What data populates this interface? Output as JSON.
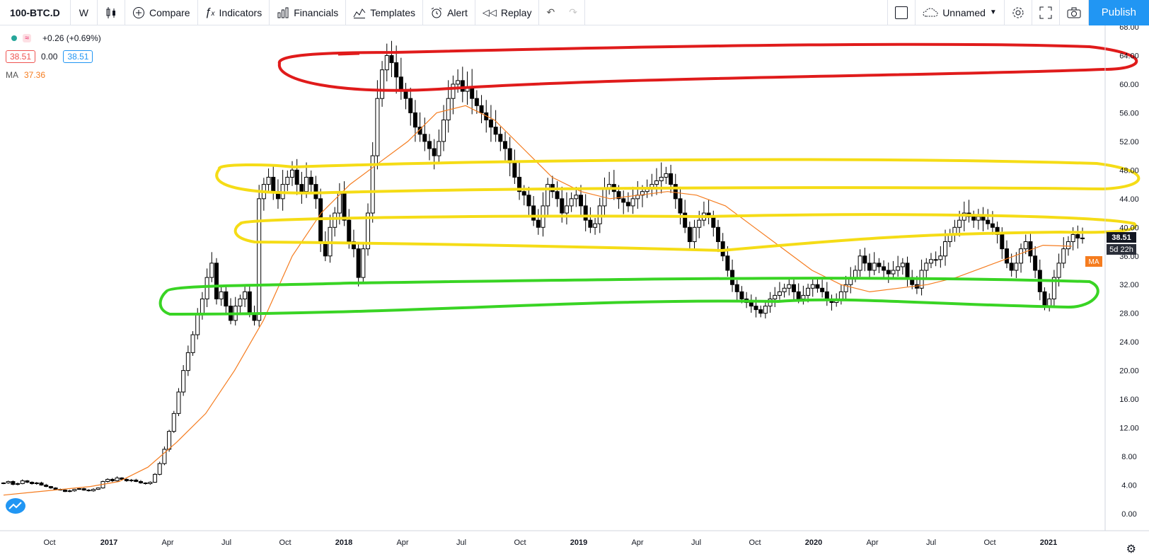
{
  "toolbar": {
    "symbol": "100-BTC.D",
    "interval": "W",
    "compare": "Compare",
    "indicators": "Indicators",
    "financials": "Financials",
    "templates": "Templates",
    "alert": "Alert",
    "replay": "Replay",
    "layout_name": "Unnamed",
    "publish": "Publish"
  },
  "legend": {
    "change": "+0.26 (+0.69%)",
    "bid": "38.51",
    "spread": "0.00",
    "ask": "38.51",
    "ma_label": "MA",
    "ma_value": "37.36"
  },
  "price_axis": {
    "current_price": "38.51",
    "countdown": "5d 22h",
    "ma_tag": "MA"
  },
  "colors": {
    "up": "#ffffff",
    "down": "#000000",
    "ma": "#f57c1f",
    "red_zone": "#e01b1b",
    "yellow_zone": "#f5dc16",
    "green_zone": "#39d424",
    "accent": "#2196f3"
  },
  "chart_data": {
    "type": "candlestick",
    "ylim": [
      0,
      68
    ],
    "y_ticks": [
      "68.00",
      "64.00",
      "60.00",
      "56.00",
      "52.00",
      "48.00",
      "44.00",
      "40.00",
      "36.00",
      "32.00",
      "28.00",
      "24.00",
      "20.00",
      "16.00",
      "12.00",
      "8.00",
      "4.00",
      "0.00"
    ],
    "x_ticks": [
      "Oct",
      "2017",
      "Apr",
      "Jul",
      "Oct",
      "2018",
      "Apr",
      "Jul",
      "Oct",
      "2019",
      "Apr",
      "Jul",
      "Oct",
      "2020",
      "Apr",
      "Jul",
      "Oct",
      "2021"
    ],
    "series": [
      {
        "values": [
          4.3,
          4.5,
          4.1,
          4.2,
          4.6,
          4.4,
          4.2,
          4.3,
          4.0,
          3.8,
          3.6,
          3.4,
          3.3,
          3.1,
          3.2,
          3.4,
          3.5,
          3.3,
          3.2,
          3.4,
          3.6,
          4.5,
          4.8,
          4.6,
          5.0,
          4.8,
          4.6,
          4.7,
          4.5,
          4.3,
          4.2,
          4.4,
          5.5,
          7.0,
          9.0,
          11.5,
          14.0,
          17.0,
          20.0,
          22.5,
          25.0,
          28.0,
          30.0,
          33.0,
          35.0,
          30.0,
          31.0,
          29.0,
          27.0,
          29.0,
          30.0,
          31.0,
          28.0,
          27.0,
          44.0,
          46.0,
          47.0,
          45.0,
          44.0,
          46.0,
          47.0,
          48.0,
          46.0,
          45.0,
          47.0,
          46.0,
          44.0,
          38.0,
          36.0,
          40.0,
          42.0,
          45.0,
          41.0,
          38.0,
          37.0,
          33.0,
          37.0,
          42.0,
          50.0,
          58.0,
          62.0,
          64.0,
          63.0,
          61.0,
          59.0,
          58.0,
          56.0,
          54.0,
          53.0,
          52.0,
          51.0,
          50.0,
          52.0,
          55.0,
          58.0,
          60.0,
          60.5,
          59.0,
          59.5,
          58.0,
          57.0,
          56.0,
          55.0,
          54.0,
          53.0,
          52.0,
          51.0,
          49.0,
          47.0,
          45.0,
          44.5,
          43.0,
          41.0,
          40.0,
          43.0,
          46.0,
          45.0,
          44.0,
          42.0,
          43.0,
          44.0,
          44.5,
          43.0,
          41.0,
          40.0,
          40.5,
          43.0,
          45.5,
          46.0,
          45.0,
          44.0,
          43.5,
          43.0,
          44.0,
          44.5,
          45.0,
          45.5,
          46.0,
          46.5,
          47.0,
          47.5,
          46.0,
          44.0,
          42.0,
          40.0,
          38.0,
          40.0,
          41.0,
          42.0,
          41.5,
          40.0,
          38.0,
          36.0,
          34.0,
          32.0,
          31.0,
          30.0,
          29.5,
          29.0,
          28.5,
          28.0,
          29.0,
          30.0,
          30.5,
          31.0,
          31.5,
          32.0,
          31.0,
          30.0,
          30.5,
          31.5,
          32.0,
          31.5,
          31.0,
          30.0,
          29.5,
          30.0,
          31.0,
          32.0,
          33.0,
          34.0,
          36.0,
          35.0,
          34.0,
          35.0,
          34.5,
          34.0,
          33.5,
          34.0,
          34.5,
          35.0,
          33.0,
          32.0,
          31.5,
          34.0,
          35.0,
          35.5,
          35.5,
          36.0,
          38.0,
          39.0,
          40.0,
          41.0,
          42.0,
          41.5,
          41.0,
          41.5,
          41.0,
          40.5,
          40.0,
          39.0,
          37.0,
          35.0,
          34.0,
          35.0,
          37.0,
          38.0,
          36.0,
          34.0,
          31.0,
          29.0,
          30.0,
          33.0,
          35.0,
          37.0,
          38.0,
          39.0,
          38.5,
          38.51
        ]
      },
      {
        "name": "MA",
        "values": [
          2.6,
          3.0,
          3.4,
          3.8,
          4.5,
          6.5,
          10.0,
          14.0,
          20.0,
          27.0,
          36.0,
          42.0,
          46.0,
          49.0,
          52.0,
          56.0,
          57.0,
          55.0,
          51.0,
          47.0,
          45.0,
          44.0,
          44.5,
          45.0,
          44.5,
          43.0,
          40.0,
          37.0,
          34.0,
          32.0,
          31.0,
          31.5,
          32.0,
          33.0,
          34.5,
          36.0,
          37.5,
          37.36
        ]
      }
    ]
  }
}
